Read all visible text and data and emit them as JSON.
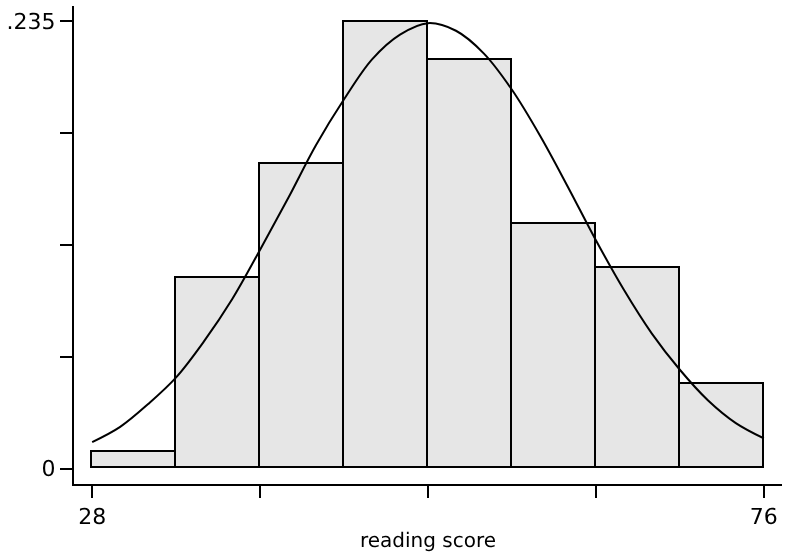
{
  "chart_data": {
    "type": "histogram",
    "xlabel": "reading score",
    "series": [
      {
        "color": "#e6e6e6",
        "bins": [
          28,
          34,
          40,
          46,
          52,
          58,
          64,
          70,
          76
        ],
        "values": [
          0.009,
          0.1,
          0.16,
          0.235,
          0.215,
          0.129,
          0.105,
          0.044
        ]
      },
      {
        "type": "line",
        "color": "#000000",
        "x": [
          28,
          30,
          32,
          34,
          36,
          38,
          40,
          42,
          44,
          46,
          48,
          50,
          52,
          54,
          56,
          58,
          60,
          62,
          64,
          66,
          68,
          70,
          72,
          74,
          76
        ],
        "values": [
          0.014,
          0.022,
          0.034,
          0.048,
          0.067,
          0.089,
          0.115,
          0.142,
          0.17,
          0.194,
          0.215,
          0.228,
          0.234,
          0.23,
          0.218,
          0.199,
          0.175,
          0.148,
          0.12,
          0.094,
          0.071,
          0.052,
          0.036,
          0.024,
          0.016
        ]
      }
    ],
    "xlim": [
      26.7,
      77.3
    ],
    "xticks": [
      28,
      {
        "value": 40,
        "label": null
      },
      {
        "value": 52,
        "label": null
      },
      {
        "value": 64,
        "label": null
      },
      76
    ],
    "ylim": [
      -0.008,
      0.243
    ],
    "yticks": [
      {
        "value": 0,
        "label": "0"
      },
      {
        "value": 0.05875,
        "label": null
      },
      {
        "value": 0.1175,
        "label": null
      },
      {
        "value": 0.17625,
        "label": null
      },
      {
        "value": 0.235,
        "label": ".235"
      }
    ],
    "line_style": "solid"
  }
}
